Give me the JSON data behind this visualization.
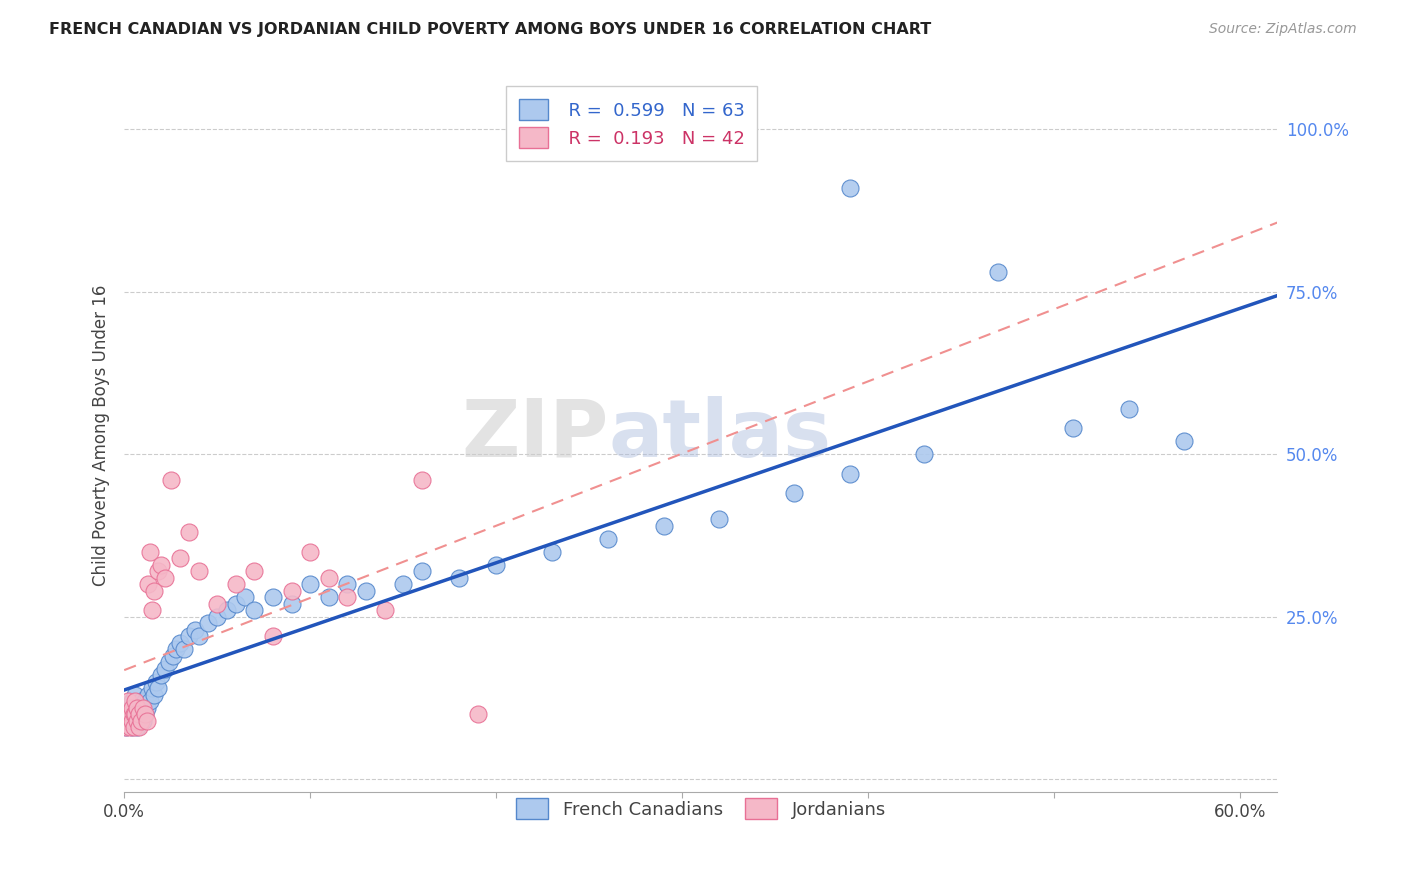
{
  "title": "FRENCH CANADIAN VS JORDANIAN CHILD POVERTY AMONG BOYS UNDER 16 CORRELATION CHART",
  "source": "Source: ZipAtlas.com",
  "ylabel": "Child Poverty Among Boys Under 16",
  "xlim": [
    0.0,
    0.62
  ],
  "ylim": [
    -0.02,
    1.08
  ],
  "xticks": [
    0.0,
    0.1,
    0.2,
    0.3,
    0.4,
    0.5,
    0.6
  ],
  "xticklabels": [
    "0.0%",
    "",
    "",
    "",
    "",
    "",
    "60.0%"
  ],
  "yticks": [
    0.0,
    0.25,
    0.5,
    0.75,
    1.0
  ],
  "yticklabels": [
    "",
    "25.0%",
    "50.0%",
    "75.0%",
    "100.0%"
  ],
  "legend1_r": "0.599",
  "legend1_n": "63",
  "legend2_r": "0.193",
  "legend2_n": "42",
  "fc_color": "#adc9ee",
  "jd_color": "#f5b8c8",
  "fc_edge_color": "#5588cc",
  "jd_edge_color": "#e87095",
  "regression_fc_color": "#2255bb",
  "regression_jd_color": "#f09090",
  "background_color": "#ffffff",
  "grid_color": "#cccccc",
  "french_canadian_x": [
    0.001,
    0.002,
    0.003,
    0.004,
    0.004,
    0.005,
    0.005,
    0.006,
    0.006,
    0.007,
    0.007,
    0.008,
    0.008,
    0.009,
    0.009,
    0.01,
    0.01,
    0.011,
    0.011,
    0.012,
    0.013,
    0.014,
    0.015,
    0.016,
    0.017,
    0.018,
    0.02,
    0.022,
    0.024,
    0.026,
    0.028,
    0.03,
    0.032,
    0.035,
    0.038,
    0.04,
    0.045,
    0.05,
    0.055,
    0.06,
    0.065,
    0.07,
    0.08,
    0.09,
    0.1,
    0.11,
    0.12,
    0.13,
    0.15,
    0.16,
    0.18,
    0.2,
    0.23,
    0.26,
    0.29,
    0.32,
    0.36,
    0.39,
    0.43,
    0.47,
    0.51,
    0.54,
    0.57
  ],
  "french_canadian_y": [
    0.08,
    0.09,
    0.1,
    0.08,
    0.12,
    0.09,
    0.11,
    0.1,
    0.13,
    0.08,
    0.1,
    0.11,
    0.09,
    0.12,
    0.1,
    0.09,
    0.11,
    0.1,
    0.12,
    0.11,
    0.13,
    0.12,
    0.14,
    0.13,
    0.15,
    0.14,
    0.16,
    0.17,
    0.18,
    0.19,
    0.2,
    0.21,
    0.2,
    0.22,
    0.23,
    0.22,
    0.24,
    0.25,
    0.26,
    0.27,
    0.28,
    0.26,
    0.28,
    0.27,
    0.3,
    0.28,
    0.3,
    0.29,
    0.3,
    0.32,
    0.31,
    0.33,
    0.35,
    0.37,
    0.39,
    0.4,
    0.44,
    0.47,
    0.5,
    0.78,
    0.54,
    0.57,
    0.52
  ],
  "french_canadian_y_outlier": [
    0.91
  ],
  "french_canadian_x_outlier": [
    0.39
  ],
  "jordanian_x": [
    0.001,
    0.001,
    0.002,
    0.002,
    0.003,
    0.003,
    0.004,
    0.004,
    0.005,
    0.005,
    0.006,
    0.006,
    0.007,
    0.007,
    0.008,
    0.008,
    0.009,
    0.01,
    0.011,
    0.012,
    0.013,
    0.014,
    0.015,
    0.016,
    0.018,
    0.02,
    0.022,
    0.025,
    0.03,
    0.035,
    0.04,
    0.05,
    0.06,
    0.07,
    0.08,
    0.09,
    0.1,
    0.11,
    0.12,
    0.14,
    0.16,
    0.19
  ],
  "jordanian_y": [
    0.08,
    0.1,
    0.09,
    0.12,
    0.1,
    0.08,
    0.11,
    0.09,
    0.1,
    0.08,
    0.12,
    0.1,
    0.09,
    0.11,
    0.08,
    0.1,
    0.09,
    0.11,
    0.1,
    0.09,
    0.3,
    0.35,
    0.26,
    0.29,
    0.32,
    0.33,
    0.31,
    0.46,
    0.34,
    0.38,
    0.32,
    0.27,
    0.3,
    0.32,
    0.22,
    0.29,
    0.35,
    0.31,
    0.28,
    0.26,
    0.46,
    0.1
  ]
}
